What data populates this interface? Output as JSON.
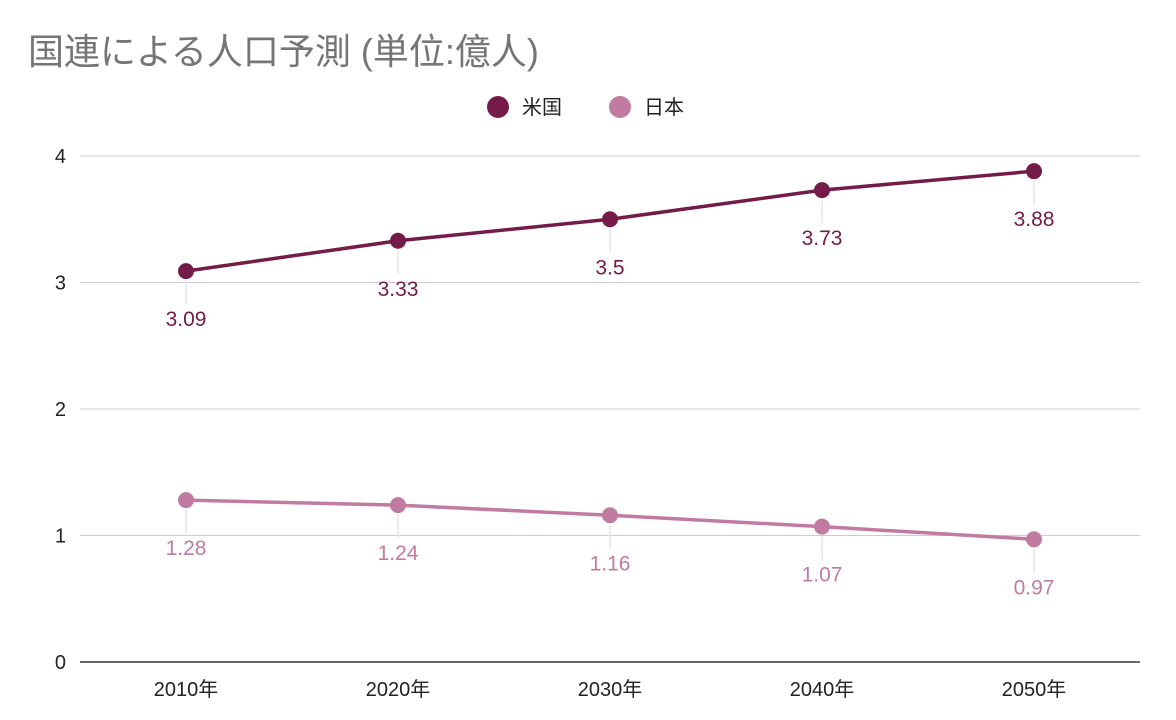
{
  "chart_data": {
    "type": "line",
    "title": "国連による人口予測 (単位:億人)",
    "xlabel": "",
    "ylabel": "",
    "categories": [
      "2010年",
      "2020年",
      "2030年",
      "2040年",
      "2050年"
    ],
    "ylim": [
      0,
      4
    ],
    "yticks": [
      0,
      1,
      2,
      3,
      4
    ],
    "grid": true,
    "legend_position": "top",
    "series": [
      {
        "name": "米国",
        "color": "#741b47",
        "values": [
          3.09,
          3.33,
          3.5,
          3.73,
          3.88
        ],
        "labels": [
          "3.09",
          "3.33",
          "3.5",
          "3.73",
          "3.88"
        ]
      },
      {
        "name": "日本",
        "color": "#c27ba0",
        "values": [
          1.28,
          1.24,
          1.16,
          1.07,
          0.97
        ],
        "labels": [
          "1.28",
          "1.24",
          "1.16",
          "1.07",
          "0.97"
        ]
      }
    ]
  }
}
